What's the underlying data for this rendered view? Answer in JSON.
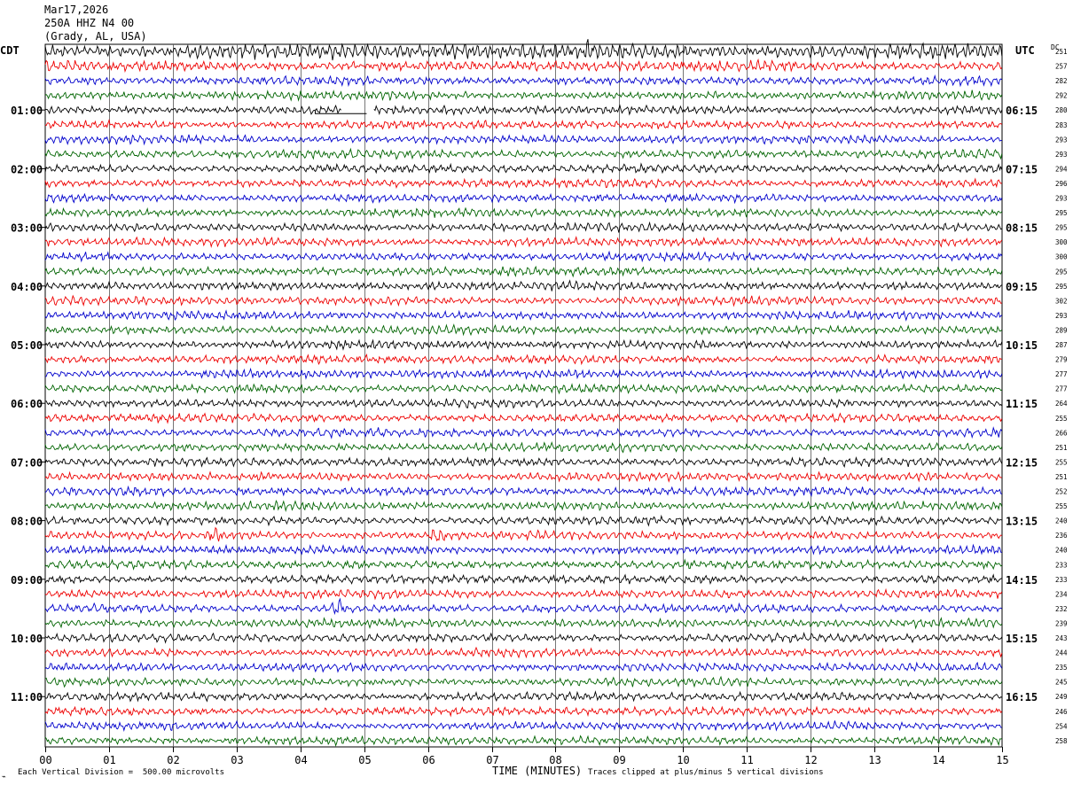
{
  "header": {
    "date": "Mar17,2026",
    "station": "250A HHZ N4 00",
    "location": "(Grady, AL, USA)"
  },
  "left_axis_title": "CDT",
  "right_axis_title": "UTC",
  "dc_title": "DC",
  "footer": {
    "scale_note": "Each Vertical Division =  500.00 microvolts",
    "xlabel": "TIME (MINUTES)",
    "clip_note": "Traces clipped at plus/minus 5 vertical divisions"
  },
  "colors": {
    "trace_cycle": [
      "#000000",
      "#ee0000",
      "#0000cc",
      "#006400"
    ],
    "grid": "#555555"
  },
  "chart_data": {
    "type": "line",
    "subtype": "helicorder",
    "x_ticks": [
      "00",
      "01",
      "02",
      "03",
      "04",
      "05",
      "06",
      "07",
      "08",
      "09",
      "10",
      "11",
      "12",
      "13",
      "14",
      "15"
    ],
    "xlim": [
      0,
      15
    ],
    "trace_count": 48,
    "minutes_per_trace": 15,
    "left_time_labels": [
      "01:00",
      "02:00",
      "03:00",
      "04:00",
      "05:00",
      "06:00",
      "07:00",
      "08:00",
      "09:00",
      "10:00",
      "11:00"
    ],
    "right_time_labels": [
      "06:15",
      "07:15",
      "08:15",
      "09:15",
      "10:15",
      "11:15",
      "12:15",
      "13:15",
      "14:15",
      "15:15",
      "16:15"
    ],
    "dc_offsets": [
      251,
      257,
      282,
      292,
      280,
      283,
      293,
      293,
      294,
      296,
      293,
      295,
      295,
      300,
      300,
      295,
      295,
      302,
      293,
      289,
      287,
      279,
      277,
      277,
      264,
      255,
      266,
      251,
      255,
      251,
      252,
      255,
      240,
      236,
      240,
      233,
      233,
      234,
      232,
      239,
      243,
      244,
      235,
      245,
      249,
      246,
      254,
      258
    ],
    "data_gap": {
      "trace": 4,
      "start_min": 4.65,
      "end_min": 5.15
    },
    "events": [
      {
        "trace": 33,
        "minute": 2.65,
        "note": "spike"
      },
      {
        "trace": 33,
        "minute": 6.15,
        "note": "spike"
      },
      {
        "trace": 38,
        "minute": 4.6,
        "note": "spike"
      },
      {
        "trace": 0,
        "minute": 8.5,
        "note": "burst"
      }
    ]
  }
}
